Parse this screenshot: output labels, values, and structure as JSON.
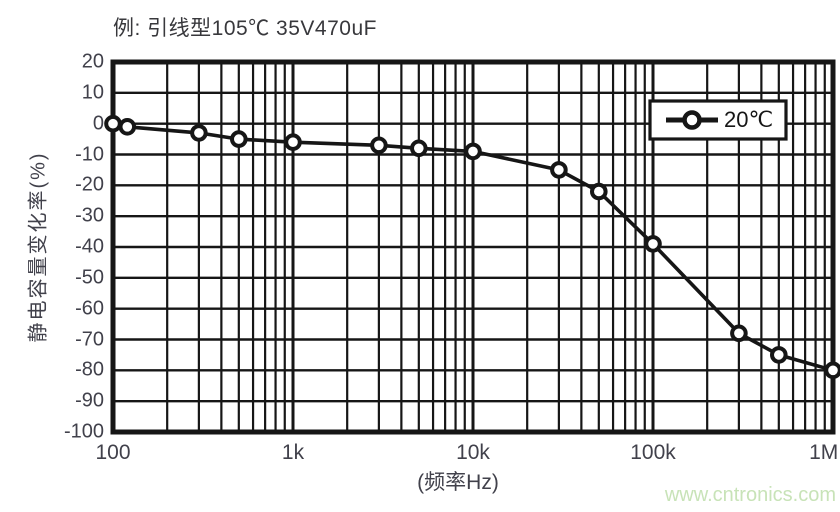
{
  "page": {
    "watermark": "www.cntronics.com"
  },
  "colors": {
    "ink": "#161616",
    "label_text": "#41414b",
    "title_text": "#38383c",
    "watermark_green": "#c8e3b8",
    "background": "#ffffff"
  },
  "chart_data": {
    "type": "line",
    "title": "例: 引线型105℃ 35V470uF",
    "xlabel": "(频率Hz)",
    "ylabel": "静电容量变化率(%)",
    "x_scale": "log",
    "xlim": [
      100,
      1000000
    ],
    "ylim": [
      -100,
      20
    ],
    "grid": "log-minor-vertical, 10%-horizontal",
    "x_ticks": [
      {
        "value": 100,
        "label": "100"
      },
      {
        "value": 1000,
        "label": "1k"
      },
      {
        "value": 10000,
        "label": "10k"
      },
      {
        "value": 100000,
        "label": "100k"
      },
      {
        "value": 1000000,
        "label": "1M"
      }
    ],
    "y_ticks": [
      20,
      10,
      0,
      -10,
      -20,
      -30,
      -40,
      -50,
      -60,
      -70,
      -80,
      -90,
      -100
    ],
    "legend": {
      "position": "top-right",
      "entries": [
        "20℃"
      ]
    },
    "series": [
      {
        "name": "20℃",
        "marker": "open-circle",
        "color": "#161616",
        "points": [
          [
            100,
            0
          ],
          [
            120,
            -1
          ],
          [
            300,
            -3
          ],
          [
            500,
            -5
          ],
          [
            1000,
            -6
          ],
          [
            3000,
            -7
          ],
          [
            5000,
            -8
          ],
          [
            10000,
            -9
          ],
          [
            30000,
            -15
          ],
          [
            50000,
            -22
          ],
          [
            100000,
            -39
          ],
          [
            300000,
            -68
          ],
          [
            500000,
            -75
          ],
          [
            1000000,
            -80
          ]
        ]
      }
    ]
  }
}
